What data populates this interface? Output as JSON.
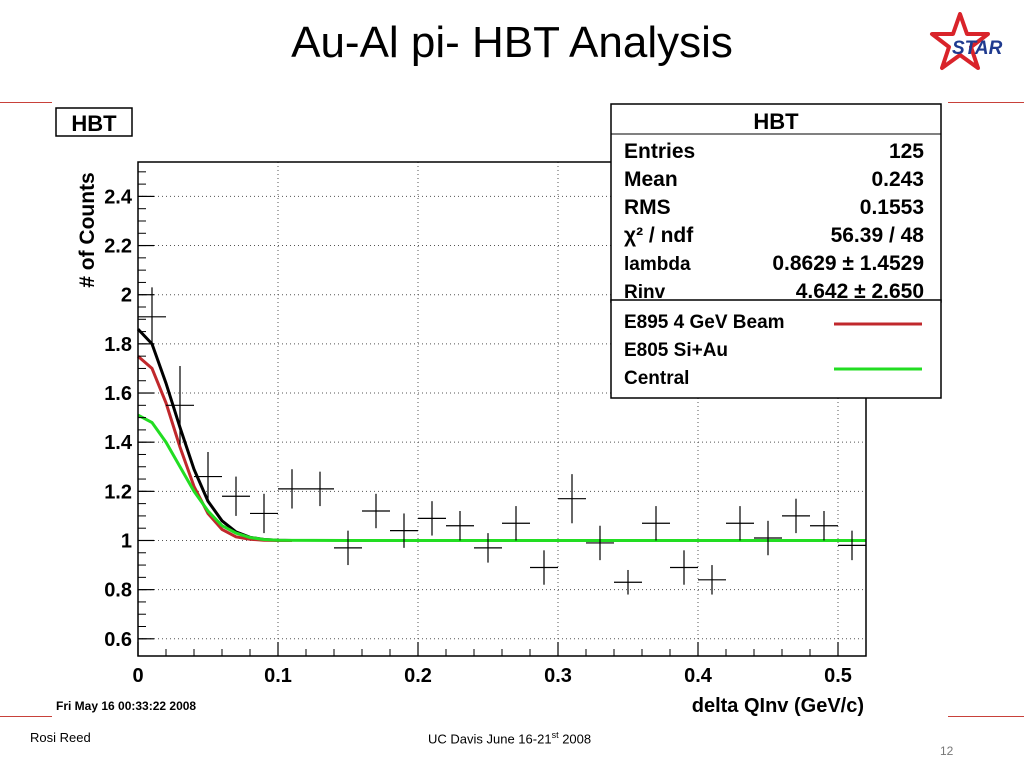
{
  "slide": {
    "title": "Au-Al pi- HBT Analysis",
    "logo_text": "STAR",
    "footer_left": "Rosi Reed",
    "footer_center": "UC Davis June 16-21",
    "footer_center_sup": "st",
    "footer_center_year": " 2008",
    "page_number": "12"
  },
  "colors": {
    "accent_rule": "#c8413a",
    "star_red": "#d9232a",
    "logo_text": "#1f3a8f",
    "e895_line": "#c0282c",
    "e805_line": "#22dd22",
    "fit_line": "#000000"
  },
  "chart_data": {
    "type": "scatter",
    "hist_name": "HBT",
    "title": "",
    "xlabel": "delta QInv (GeV/c)",
    "ylabel": "# of Counts",
    "xlim": [
      0,
      0.52
    ],
    "ylim": [
      0.53,
      2.54
    ],
    "xticks": [
      "0",
      "0.1",
      "0.2",
      "0.3",
      "0.4",
      "0.5"
    ],
    "yticks": [
      "0.6",
      "0.8",
      "1",
      "1.2",
      "1.4",
      "1.6",
      "1.8",
      "2",
      "2.2",
      "2.4"
    ],
    "grid": true,
    "timestamp": "Fri May 16 00:33:22 2008",
    "stats": {
      "title": "HBT",
      "rows": [
        {
          "label": "Entries",
          "value": "125"
        },
        {
          "label": "Mean",
          "value": "0.243"
        },
        {
          "label": "RMS",
          "value": "0.1553"
        },
        {
          "label": "χ² / ndf",
          "value": "56.39 / 48"
        },
        {
          "label": "lambda",
          "value": "0.8629 ± 1.4529"
        },
        {
          "label": "Rinv",
          "value": "4.642 ± 2.650"
        }
      ]
    },
    "legend": {
      "position": "top-right",
      "entries": [
        {
          "label": "E895 4 GeV Beam",
          "color": "#c0282c"
        },
        {
          "label": "E805 Si+Au",
          "color": ""
        },
        {
          "label": "Central",
          "color": "#22dd22"
        }
      ]
    },
    "points": [
      {
        "x": 0.01,
        "y": 1.91,
        "ex": 0.01,
        "ey": 0.12
      },
      {
        "x": 0.03,
        "y": 1.55,
        "ex": 0.01,
        "ey": 0.16
      },
      {
        "x": 0.05,
        "y": 1.26,
        "ex": 0.01,
        "ey": 0.1
      },
      {
        "x": 0.07,
        "y": 1.18,
        "ex": 0.01,
        "ey": 0.08
      },
      {
        "x": 0.09,
        "y": 1.11,
        "ex": 0.01,
        "ey": 0.08
      },
      {
        "x": 0.11,
        "y": 1.21,
        "ex": 0.01,
        "ey": 0.08
      },
      {
        "x": 0.13,
        "y": 1.21,
        "ex": 0.01,
        "ey": 0.07
      },
      {
        "x": 0.15,
        "y": 0.97,
        "ex": 0.01,
        "ey": 0.07
      },
      {
        "x": 0.17,
        "y": 1.12,
        "ex": 0.01,
        "ey": 0.07
      },
      {
        "x": 0.19,
        "y": 1.04,
        "ex": 0.01,
        "ey": 0.07
      },
      {
        "x": 0.21,
        "y": 1.09,
        "ex": 0.01,
        "ey": 0.07
      },
      {
        "x": 0.23,
        "y": 1.06,
        "ex": 0.01,
        "ey": 0.06
      },
      {
        "x": 0.25,
        "y": 0.97,
        "ex": 0.01,
        "ey": 0.06
      },
      {
        "x": 0.27,
        "y": 1.07,
        "ex": 0.01,
        "ey": 0.07
      },
      {
        "x": 0.29,
        "y": 0.89,
        "ex": 0.01,
        "ey": 0.07
      },
      {
        "x": 0.31,
        "y": 1.17,
        "ex": 0.01,
        "ey": 0.1
      },
      {
        "x": 0.33,
        "y": 0.99,
        "ex": 0.01,
        "ey": 0.07
      },
      {
        "x": 0.35,
        "y": 0.83,
        "ex": 0.01,
        "ey": 0.05
      },
      {
        "x": 0.37,
        "y": 1.07,
        "ex": 0.01,
        "ey": 0.07
      },
      {
        "x": 0.39,
        "y": 0.89,
        "ex": 0.01,
        "ey": 0.07
      },
      {
        "x": 0.41,
        "y": 0.84,
        "ex": 0.01,
        "ey": 0.06
      },
      {
        "x": 0.43,
        "y": 1.07,
        "ex": 0.01,
        "ey": 0.07
      },
      {
        "x": 0.45,
        "y": 1.01,
        "ex": 0.01,
        "ey": 0.07
      },
      {
        "x": 0.47,
        "y": 1.1,
        "ex": 0.01,
        "ey": 0.07
      },
      {
        "x": 0.49,
        "y": 1.06,
        "ex": 0.01,
        "ey": 0.06
      },
      {
        "x": 0.51,
        "y": 0.98,
        "ex": 0.01,
        "ey": 0.06
      }
    ],
    "series": [
      {
        "color": "#000000",
        "x": [
          0.0,
          0.01,
          0.02,
          0.03,
          0.04,
          0.05,
          0.06,
          0.07,
          0.08,
          0.09,
          0.1,
          0.11
        ],
        "y": [
          1.86,
          1.8,
          1.64,
          1.46,
          1.29,
          1.16,
          1.08,
          1.035,
          1.013,
          1.004,
          1.001,
          1.0
        ]
      },
      {
        "color": "#c0282c",
        "x": [
          0.0,
          0.01,
          0.02,
          0.03,
          0.04,
          0.05,
          0.06,
          0.07,
          0.08,
          0.09,
          0.1,
          0.11
        ],
        "y": [
          1.75,
          1.7,
          1.56,
          1.38,
          1.22,
          1.11,
          1.045,
          1.015,
          1.005,
          1.001,
          1.0,
          1.0
        ]
      },
      {
        "color": "#22dd22",
        "x": [
          0.0,
          0.01,
          0.02,
          0.03,
          0.04,
          0.05,
          0.06,
          0.07,
          0.08,
          0.09,
          0.1,
          0.15,
          0.2,
          0.3,
          0.4,
          0.5,
          0.52
        ],
        "y": [
          1.51,
          1.48,
          1.4,
          1.3,
          1.2,
          1.12,
          1.06,
          1.03,
          1.012,
          1.004,
          1.001,
          1.0,
          1.0,
          1.0,
          1.0,
          1.0,
          1.0
        ]
      }
    ]
  }
}
